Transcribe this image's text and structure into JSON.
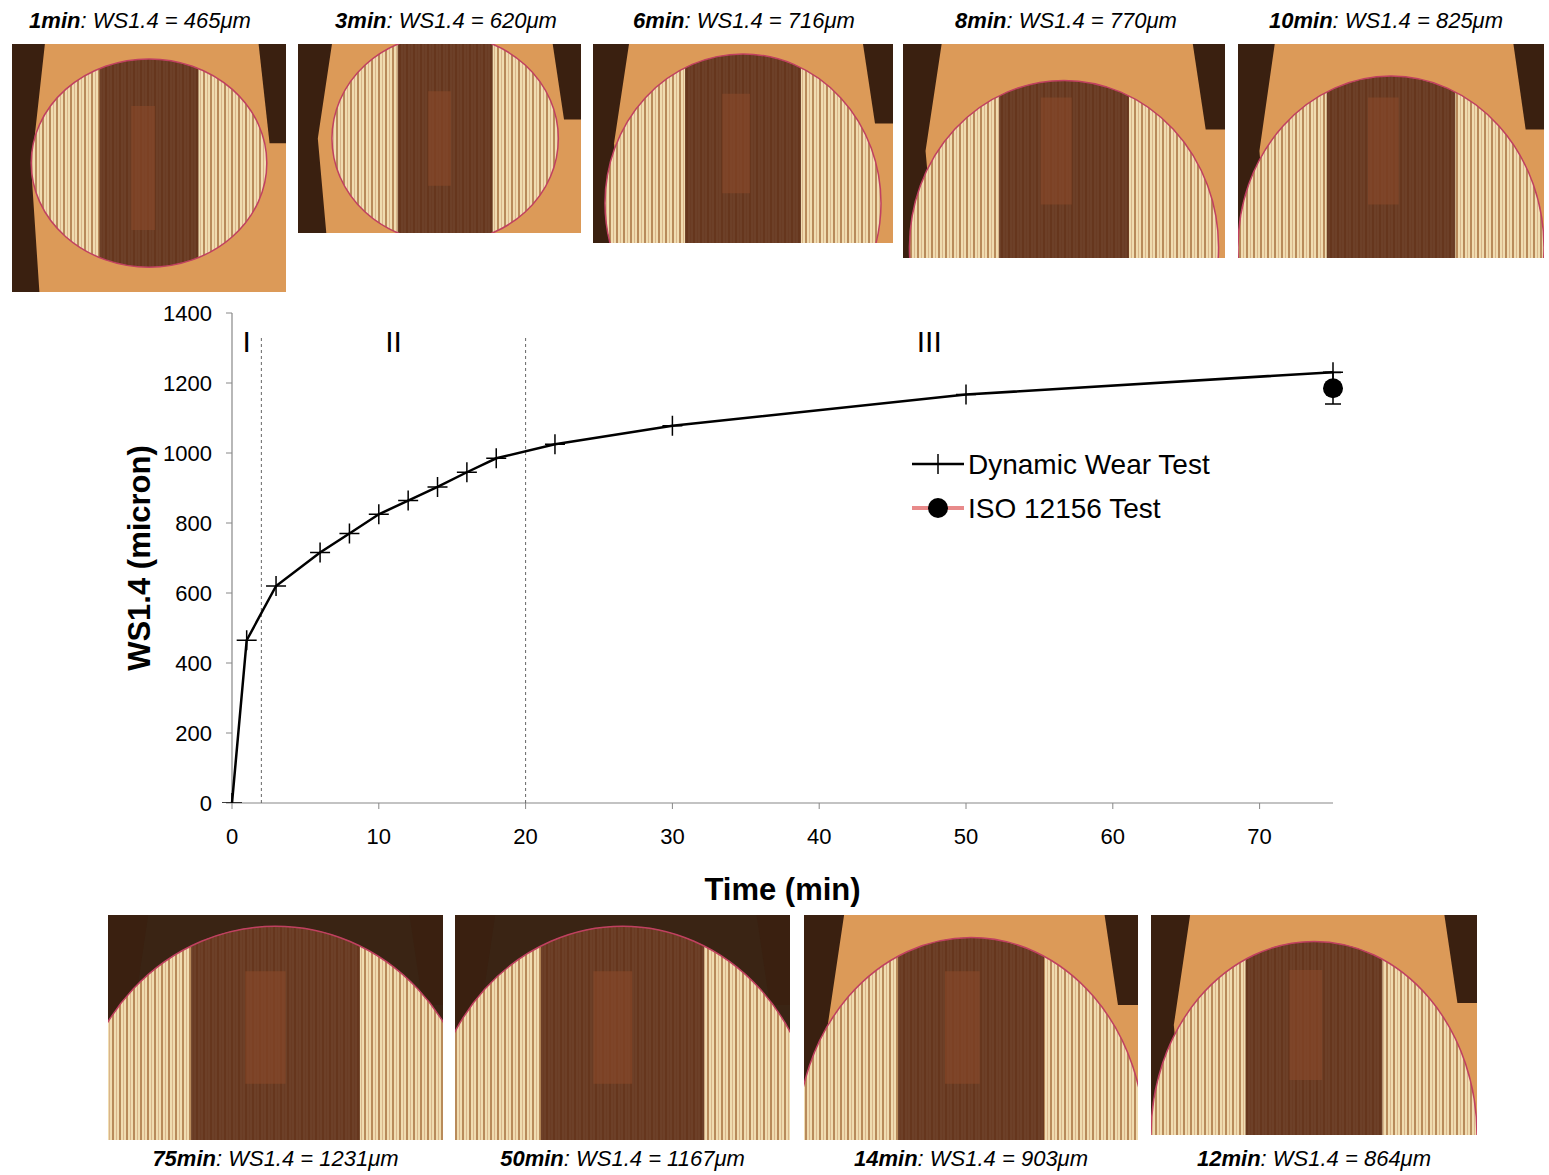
{
  "chart_data": {
    "type": "line",
    "x_label": "Time (min)",
    "y_label": "WS1.4 (micron)",
    "xlim": [
      0,
      75
    ],
    "xticks": [
      0,
      10,
      20,
      30,
      40,
      50,
      60,
      70
    ],
    "ylim": [
      0,
      1400
    ],
    "yticks": [
      0,
      200,
      400,
      600,
      800,
      1000,
      1200,
      1400
    ],
    "grid": false,
    "legend": "right",
    "regions": [
      {
        "label": "I",
        "from": 0,
        "to": 2
      },
      {
        "label": "II",
        "from": 2,
        "to": 20
      },
      {
        "label": "III",
        "from": 20,
        "to": 75
      }
    ],
    "series": [
      {
        "name": "Dynamic Wear Test",
        "type": "line",
        "color": "#000000",
        "marker": "plus",
        "x": [
          0,
          1,
          3,
          6,
          8,
          10,
          12,
          14,
          16,
          18,
          22,
          30,
          50,
          75
        ],
        "values": [
          0,
          465,
          620,
          716,
          770,
          825,
          864,
          903,
          945,
          985,
          1025,
          1078,
          1167,
          1231
        ]
      },
      {
        "name": "ISO 12156 Test",
        "type": "scatter",
        "color": "#000000",
        "marker": "circle",
        "x": [
          75
        ],
        "values": [
          1185
        ],
        "errors": [
          45
        ]
      }
    ]
  },
  "micrographs": {
    "top": [
      "1min: WS1.4 = 465μm",
      "3min: WS1.4 = 620μm",
      "6min: WS1.4 = 716μm",
      "8min: WS1.4 = 770μm",
      "10min: WS1.4 = 825μm"
    ],
    "bottom": [
      "75min: WS1.4 = 1231μm",
      "50min: WS1.4 = 1167μm",
      "14min: WS1.4 = 903μm",
      "12min: WS1.4 = 864μm"
    ]
  }
}
